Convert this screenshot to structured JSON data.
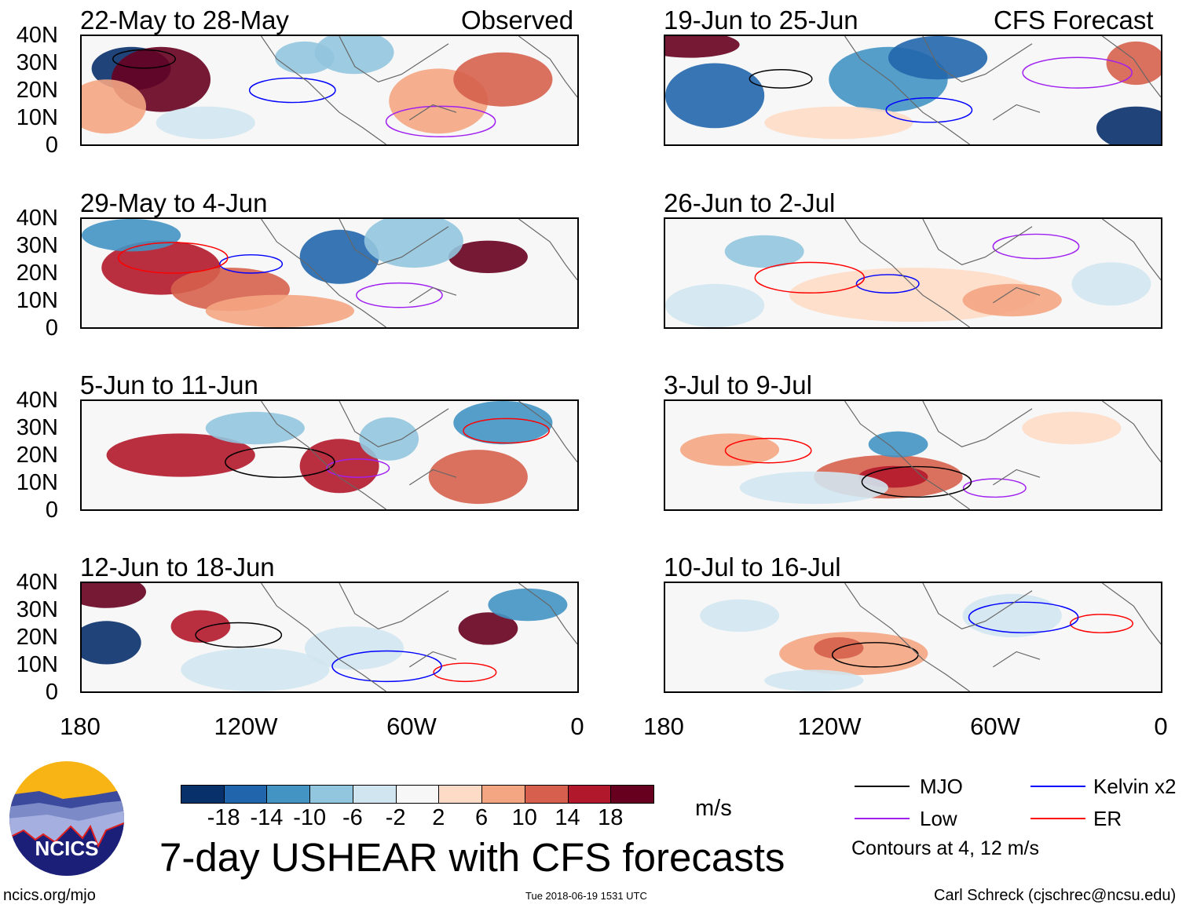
{
  "figure": {
    "title": "7-day USHEAR with CFS forecasts",
    "units": "m/s",
    "website": "ncics.org/mjo",
    "timestamp": "Tue 2018-06-19 1531 UTC",
    "author": "Carl Schreck (cjschrec@ncsu.edu)",
    "logo_text": "NCICS",
    "column_labels": {
      "left": "Observed",
      "right": "CFS Forecast"
    }
  },
  "panels": {
    "observed": [
      {
        "title": "22-May to 28-May"
      },
      {
        "title": "29-May to 4-Jun"
      },
      {
        "title": "5-Jun to 11-Jun"
      },
      {
        "title": "12-Jun to 18-Jun"
      }
    ],
    "forecast": [
      {
        "title": "19-Jun to 25-Jun"
      },
      {
        "title": "26-Jun to 2-Jul"
      },
      {
        "title": "3-Jul to 9-Jul"
      },
      {
        "title": "10-Jul to 16-Jul"
      }
    ]
  },
  "axes": {
    "lat_labels": [
      "40N",
      "30N",
      "20N",
      "10N",
      "0"
    ],
    "lon_labels": [
      "180",
      "120W",
      "60W",
      "0"
    ]
  },
  "colorbar": {
    "colors": [
      "#08306b",
      "#2166ac",
      "#4393c3",
      "#92c5de",
      "#d1e5f0",
      "#f7f7f7",
      "#fddbc7",
      "#f4a582",
      "#d6604d",
      "#b2182b",
      "#67001f"
    ],
    "labels": [
      "-18",
      "-14",
      "-10",
      "-6",
      "-2",
      "2",
      "6",
      "10",
      "14",
      "18"
    ]
  },
  "legend": {
    "items": [
      {
        "label": "MJO",
        "color": "#000000"
      },
      {
        "label": "Kelvin x2",
        "color": "#0000ff"
      },
      {
        "label": "Low",
        "color": "#a020f0"
      },
      {
        "label": "ER",
        "color": "#ff0000"
      }
    ],
    "note": "Contours at 4, 12 m/s"
  }
}
